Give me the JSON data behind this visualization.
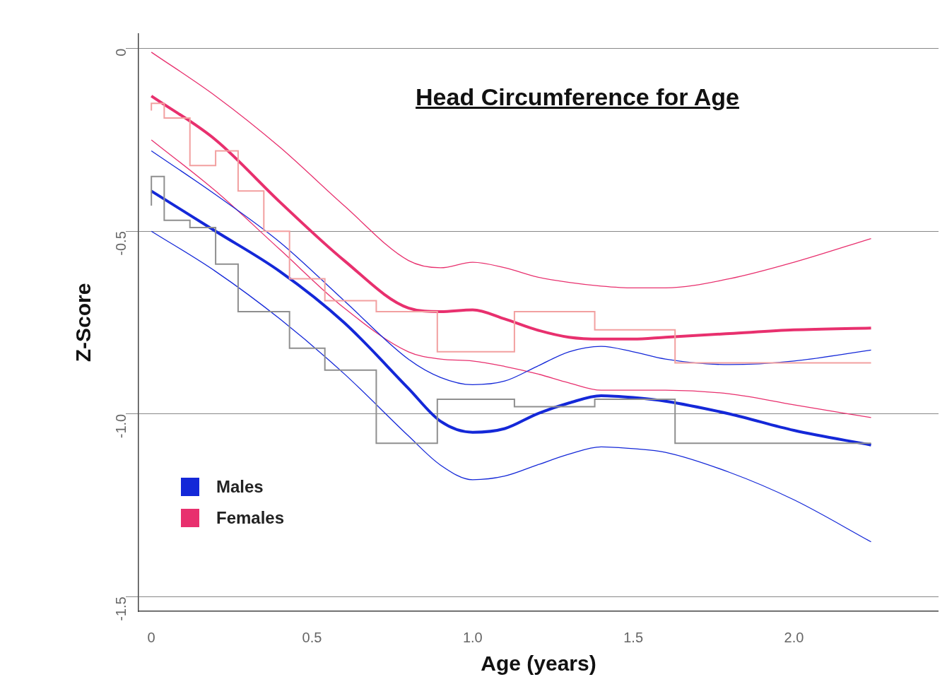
{
  "chart_data": {
    "type": "line",
    "title": "Head Circumference for Age",
    "xlabel": "Age (years)",
    "ylabel": "Z-Score",
    "xlim": [
      -0.04,
      2.45
    ],
    "xticks": [
      0,
      0.5,
      {
        "value": 1,
        "label": "1.0"
      },
      1.5,
      {
        "value": 2,
        "label": "2.0"
      }
    ],
    "ylim": [
      -1.54,
      0.04
    ],
    "yticks": [
      0,
      -0.5,
      {
        "value": -1,
        "label": "-1.0"
      },
      -1.5
    ],
    "grid": "y",
    "legend": "bottom left",
    "series": [
      {
        "type": "step",
        "color": "#8f8f8f",
        "x": [
          0,
          0.04,
          0.12,
          0.2,
          0.27,
          0.43,
          0.54,
          0.7,
          0.89,
          1.13,
          1.38,
          1.63,
          1.88,
          2.24
        ],
        "values": [
          -0.43,
          -0.35,
          -0.47,
          -0.49,
          -0.59,
          -0.72,
          -0.82,
          -0.88,
          -1.08,
          -0.96,
          -0.98,
          -0.96,
          -1.08,
          -1.08
        ]
      },
      {
        "type": "step",
        "color": "#f2a0a0",
        "x": [
          0,
          0.04,
          0.12,
          0.2,
          0.27,
          0.35,
          0.43,
          0.54,
          0.7,
          0.89,
          1.13,
          1.38,
          1.63,
          1.88,
          2.24
        ],
        "values": [
          -0.17,
          -0.15,
          -0.19,
          -0.32,
          -0.28,
          -0.39,
          -0.5,
          -0.63,
          -0.69,
          -0.72,
          -0.83,
          -0.72,
          -0.77,
          -0.86,
          -0.86
        ]
      },
      {
        "color": "#1428d8",
        "x": [
          0,
          0.2,
          0.4,
          0.6,
          0.8,
          0.9,
          1.0,
          1.1,
          1.2,
          1.3,
          1.4,
          1.5,
          1.6,
          1.8,
          2.0,
          2.24
        ],
        "values": [
          -0.28,
          -0.4,
          -0.53,
          -0.69,
          -0.85,
          -0.9,
          -0.92,
          -0.91,
          -0.87,
          -0.83,
          -0.815,
          -0.83,
          -0.85,
          -0.865,
          -0.855,
          -0.825
        ]
      },
      {
        "color": "#1428d8",
        "x": [
          0,
          0.2,
          0.4,
          0.6,
          0.8,
          0.9,
          1.0,
          1.1,
          1.2,
          1.3,
          1.4,
          1.5,
          1.6,
          1.8,
          2.0,
          2.24
        ],
        "values": [
          -0.5,
          -0.61,
          -0.74,
          -0.89,
          -1.06,
          -1.14,
          -1.18,
          -1.17,
          -1.14,
          -1.11,
          -1.09,
          -1.095,
          -1.105,
          -1.16,
          -1.235,
          -1.35
        ]
      },
      {
        "color": "#e8306e",
        "x": [
          0,
          0.2,
          0.4,
          0.6,
          0.8,
          0.9,
          1.0,
          1.1,
          1.2,
          1.3,
          1.4,
          1.5,
          1.6,
          1.8,
          2.0,
          2.24
        ],
        "values": [
          -0.01,
          -0.13,
          -0.27,
          -0.43,
          -0.58,
          -0.6,
          -0.585,
          -0.6,
          -0.625,
          -0.64,
          -0.65,
          -0.655,
          -0.655,
          -0.63,
          -0.585,
          -0.52
        ]
      },
      {
        "color": "#e8306e",
        "x": [
          0,
          0.2,
          0.4,
          0.6,
          0.8,
          0.9,
          1.0,
          1.1,
          1.2,
          1.3,
          1.4,
          1.5,
          1.6,
          1.8,
          2.0,
          2.24
        ],
        "values": [
          -0.25,
          -0.39,
          -0.55,
          -0.71,
          -0.83,
          -0.85,
          -0.855,
          -0.87,
          -0.89,
          -0.915,
          -0.935,
          -0.935,
          -0.935,
          -0.945,
          -0.975,
          -1.01
        ]
      },
      {
        "name": "Males",
        "color": "#1428d8",
        "x": [
          0,
          0.2,
          0.4,
          0.6,
          0.8,
          0.9,
          1.0,
          1.1,
          1.2,
          1.3,
          1.4,
          1.5,
          1.6,
          1.8,
          2.0,
          2.24
        ],
        "values": [
          -0.39,
          -0.5,
          -0.61,
          -0.75,
          -0.93,
          -1.02,
          -1.05,
          -1.04,
          -1.0,
          -0.97,
          -0.95,
          -0.955,
          -0.965,
          -1.0,
          -1.045,
          -1.085
        ]
      },
      {
        "name": "Females",
        "color": "#e8306e",
        "x": [
          0,
          0.2,
          0.4,
          0.6,
          0.8,
          0.9,
          1.0,
          1.1,
          1.2,
          1.3,
          1.4,
          1.5,
          1.6,
          1.8,
          2.0,
          2.24
        ],
        "values": [
          -0.13,
          -0.25,
          -0.42,
          -0.58,
          -0.71,
          -0.72,
          -0.715,
          -0.74,
          -0.77,
          -0.79,
          -0.795,
          -0.795,
          -0.79,
          -0.78,
          -0.77,
          -0.765
        ]
      }
    ]
  }
}
